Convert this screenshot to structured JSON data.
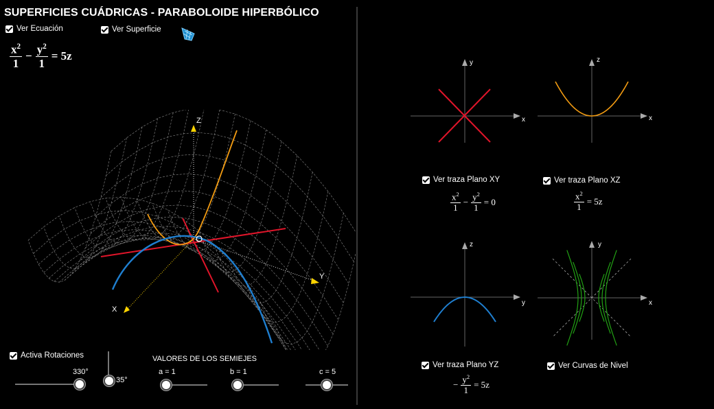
{
  "title": "SUPERFICIES CUÁDRICAS - PARABOLOIDE HIPERBÓLICO",
  "checkboxes": {
    "ver_ecuacion": "Ver Ecuación",
    "ver_superficie": "Ver Superficie",
    "activa_rotaciones": "Activa Rotaciones",
    "traza_xy": "Ver traza Plano XY",
    "traza_xz": "Ver traza Plano XZ",
    "traza_yz": "Ver traza Plano YZ",
    "curvas_nivel": "Ver Curvas de Nivel"
  },
  "main_equation": {
    "t1_num": "x",
    "t1_den": "1",
    "minus": "−",
    "t2_num": "y",
    "t2_den": "1",
    "rhs": "= 5z",
    "exp": "2"
  },
  "axes3d": {
    "z": "Z",
    "x": "X",
    "y": "Y"
  },
  "sliders": {
    "heading": "VALORES DE LOS SEMIEJES",
    "rot_h_label": "330°",
    "rot_v_label": "35°",
    "a_label": "a = 1",
    "b_label": "b = 1",
    "c_label": "c = 5",
    "rot_h": 330,
    "rot_v": 35,
    "a": 1,
    "b": 1,
    "c": 5
  },
  "traces": {
    "xy": {
      "h": "x",
      "v": "y",
      "eq_left_num": "x",
      "eq_left_den": "1",
      "op": "−",
      "eq_right_num": "y",
      "eq_right_den": "1",
      "rhs": "= 0"
    },
    "xz": {
      "h": "x",
      "v": "z",
      "eq_num": "x",
      "eq_den": "1",
      "rhs": "= 5z"
    },
    "yz": {
      "h": "y",
      "v": "z",
      "sign": "−",
      "eq_num": "y",
      "eq_den": "1",
      "rhs": "= 5z"
    },
    "nivel": {
      "h": "x",
      "v": "y"
    }
  },
  "colors": {
    "xy": "#e0152a",
    "xz": "#f39c12",
    "yz": "#1f7fd0",
    "nivel": "#22a314",
    "mesh": "#8a8a8a"
  }
}
